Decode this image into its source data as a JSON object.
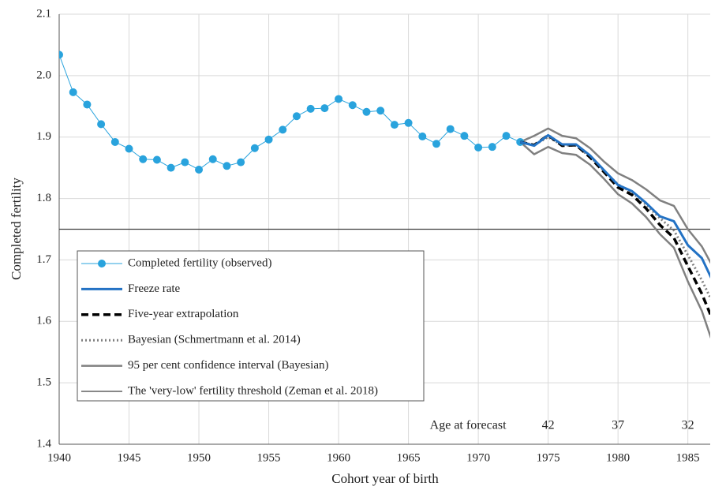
{
  "chart_data": {
    "type": "line",
    "xlabel": "Cohort year of birth",
    "ylabel": "Completed fertility",
    "xlim": [
      1940,
      1986.6
    ],
    "xticks": [
      1940,
      1945,
      1950,
      1955,
      1960,
      1965,
      1970,
      1975,
      1980,
      1985
    ],
    "ylim": [
      1.4,
      2.1
    ],
    "yticks": [
      {
        "value": 1.4,
        "label": "1.4"
      },
      1.5,
      1.6,
      1.7,
      1.8,
      1.9,
      {
        "value": 2.0,
        "label": "2.0"
      },
      2.1
    ],
    "grid": true,
    "series": [
      {
        "name": "Completed fertility (observed)",
        "color": "#29a3dd",
        "style": "thin-markers",
        "x": [
          1940,
          1941,
          1942,
          1943,
          1944,
          1945,
          1946,
          1947,
          1948,
          1949,
          1950,
          1951,
          1952,
          1953,
          1954,
          1955,
          1956,
          1957,
          1958,
          1959,
          1960,
          1961,
          1962,
          1963,
          1964,
          1965,
          1966,
          1967,
          1968,
          1969,
          1970,
          1971,
          1972,
          1973
        ],
        "values": [
          2.034,
          1.973,
          1.953,
          1.921,
          1.892,
          1.881,
          1.864,
          1.863,
          1.85,
          1.859,
          1.847,
          1.864,
          1.853,
          1.859,
          1.882,
          1.896,
          1.912,
          1.934,
          1.946,
          1.947,
          1.962,
          1.952,
          1.941,
          1.943,
          1.92,
          1.923,
          1.901,
          1.889,
          1.913,
          1.902,
          1.883,
          1.884,
          1.902,
          1.892
        ]
      },
      {
        "name": "Freeze rate",
        "color": "#2372c4",
        "style": "thick",
        "x": [
          1973,
          1974,
          1975,
          1976,
          1977,
          1978,
          1979,
          1980,
          1981,
          1982,
          1983,
          1984,
          1985,
          1986,
          1987
        ],
        "values": [
          1.892,
          1.886,
          1.903,
          1.888,
          1.888,
          1.87,
          1.846,
          1.822,
          1.812,
          1.793,
          1.771,
          1.763,
          1.724,
          1.703,
          1.655
        ]
      },
      {
        "name": "Five-year extrapolation",
        "color": "#000000",
        "style": "dashed",
        "x": [
          1973,
          1974,
          1975,
          1976,
          1977,
          1978,
          1979,
          1980,
          1981,
          1982,
          1983,
          1984,
          1985,
          1986,
          1987
        ],
        "values": [
          1.892,
          1.887,
          1.903,
          1.886,
          1.887,
          1.867,
          1.843,
          1.818,
          1.806,
          1.784,
          1.757,
          1.736,
          1.69,
          1.645,
          1.59
        ]
      },
      {
        "name": "Bayesian (Schmertmann et al. 2014)",
        "color": "#808080",
        "style": "dotted",
        "x": [
          1973,
          1974,
          1975,
          1976,
          1977,
          1978,
          1979,
          1980,
          1981,
          1982,
          1983,
          1984,
          1985,
          1986,
          1987
        ],
        "values": [
          1.892,
          1.887,
          1.9,
          1.887,
          1.886,
          1.868,
          1.845,
          1.823,
          1.81,
          1.79,
          1.768,
          1.748,
          1.708,
          1.667,
          1.62
        ]
      },
      {
        "name": "95 per cent confidence interval (Bayesian)",
        "color": "#808080",
        "style": "band",
        "x": [
          1973,
          1974,
          1975,
          1976,
          1977,
          1978,
          1979,
          1980,
          1981,
          1982,
          1983,
          1984,
          1985,
          1986,
          1987
        ],
        "upper": [
          1.892,
          1.902,
          1.914,
          1.902,
          1.898,
          1.882,
          1.86,
          1.841,
          1.83,
          1.815,
          1.797,
          1.788,
          1.75,
          1.722,
          1.68
        ],
        "lower": [
          1.892,
          1.872,
          1.884,
          1.874,
          1.871,
          1.855,
          1.832,
          1.807,
          1.792,
          1.77,
          1.742,
          1.72,
          1.665,
          1.617,
          1.55
        ]
      }
    ],
    "threshold": {
      "name": "The 'very-low' fertility threshold (Zeman et al. 2018)",
      "value": 1.75,
      "color": "#404040"
    },
    "age_at_forecast": {
      "title": "Age at forecast",
      "x": [
        1975,
        1980,
        1985
      ],
      "ages": [
        42,
        37,
        32
      ]
    }
  }
}
